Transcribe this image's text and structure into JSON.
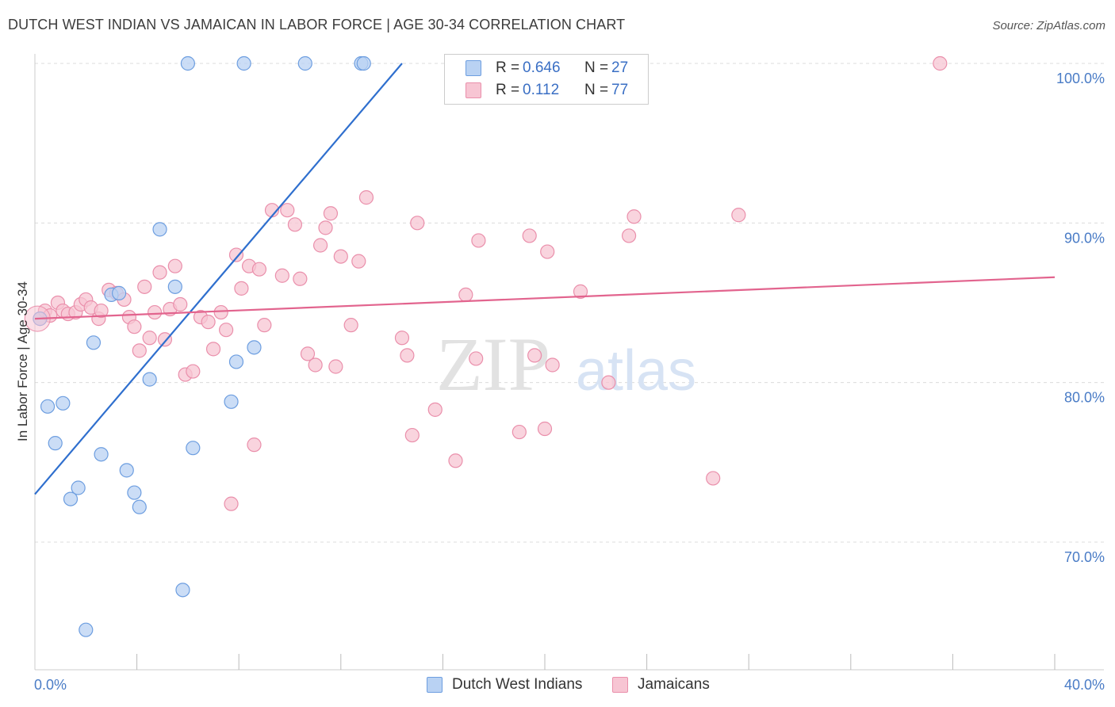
{
  "title": "DUTCH WEST INDIAN VS JAMAICAN IN LABOR FORCE | AGE 30-34 CORRELATION CHART",
  "source": "Source: ZipAtlas.com",
  "watermark": {
    "zip": "ZIP",
    "atlas": "atlas"
  },
  "colors": {
    "blue_fill": "#b9d2f3",
    "blue_stroke": "#6d9ee0",
    "blue_line": "#2f6fce",
    "pink_fill": "#f7c5d3",
    "pink_stroke": "#ea8fab",
    "pink_line": "#e2648e",
    "tick_text": "#4a7cc6",
    "grid": "#dcdcdc"
  },
  "legend_top": {
    "rows": [
      {
        "r_label": "R =",
        "r_value": "0.646",
        "n_label": "N =",
        "n_value": "27",
        "color": "#b9d2f3",
        "stroke": "#6d9ee0"
      },
      {
        "r_label": "R =",
        "r_value": "0.112",
        "n_label": "N =",
        "n_value": "77",
        "color": "#f7c5d3",
        "stroke": "#ea8fab"
      }
    ]
  },
  "legend_bottom": [
    {
      "label": "Dutch West Indians",
      "color": "#b9d2f3",
      "stroke": "#6d9ee0"
    },
    {
      "label": "Jamaicans",
      "color": "#f7c5d3",
      "stroke": "#ea8fab"
    }
  ],
  "chart_data": {
    "type": "scatter",
    "title": "DUTCH WEST INDIAN VS JAMAICAN IN LABOR FORCE | AGE 30-34 CORRELATION CHART",
    "xlabel": "",
    "ylabel": "In Labor Force | Age 30-34",
    "xlim": [
      0,
      40
    ],
    "ylim": [
      62,
      100
    ],
    "x_tick_labels": [
      {
        "value": 0,
        "label": "0.0%"
      },
      {
        "value": 40,
        "label": "40.0%"
      }
    ],
    "y_tick_labels": [
      {
        "value": 70,
        "label": "70.0%"
      },
      {
        "value": 80,
        "label": "80.0%"
      },
      {
        "value": 90,
        "label": "90.0%"
      },
      {
        "value": 100,
        "label": "100.0%"
      }
    ],
    "x_minor_ticks": [
      4,
      8,
      12,
      16,
      20,
      24,
      28,
      32,
      36
    ],
    "grid": true,
    "legend_position": "top-center",
    "series": [
      {
        "name": "Dutch West Indians",
        "r": 0.646,
        "n": 27,
        "trend": {
          "x": [
            0,
            14.4
          ],
          "y": [
            73.0,
            100.0
          ]
        },
        "points": [
          [
            0.2,
            84.0
          ],
          [
            0.5,
            78.5
          ],
          [
            0.8,
            76.2
          ],
          [
            1.1,
            78.7
          ],
          [
            1.4,
            72.7
          ],
          [
            1.7,
            73.4
          ],
          [
            2.0,
            64.5
          ],
          [
            2.3,
            82.5
          ],
          [
            2.6,
            75.5
          ],
          [
            3.0,
            85.5
          ],
          [
            3.3,
            85.6
          ],
          [
            3.6,
            74.5
          ],
          [
            3.9,
            73.1
          ],
          [
            4.1,
            72.2
          ],
          [
            4.5,
            80.2
          ],
          [
            4.9,
            89.6
          ],
          [
            5.5,
            86.0
          ],
          [
            5.8,
            67.0
          ],
          [
            6.0,
            100.0
          ],
          [
            6.2,
            75.9
          ],
          [
            7.7,
            78.8
          ],
          [
            7.9,
            81.3
          ],
          [
            8.2,
            100.0
          ],
          [
            8.6,
            82.2
          ],
          [
            10.6,
            100.0
          ],
          [
            12.8,
            100.0
          ],
          [
            12.9,
            100.0
          ]
        ]
      },
      {
        "name": "Jamaicans",
        "r": 0.112,
        "n": 77,
        "trend": {
          "x": [
            0,
            40
          ],
          "y": [
            84.0,
            86.6
          ]
        },
        "points": [
          [
            0.2,
            84.0
          ],
          [
            0.4,
            84.5
          ],
          [
            0.6,
            84.2
          ],
          [
            0.9,
            85.0
          ],
          [
            1.1,
            84.5
          ],
          [
            1.3,
            84.3
          ],
          [
            1.6,
            84.4
          ],
          [
            1.8,
            84.9
          ],
          [
            2.0,
            85.2
          ],
          [
            2.2,
            84.7
          ],
          [
            2.5,
            84.0
          ],
          [
            2.6,
            84.5
          ],
          [
            2.9,
            85.8
          ],
          [
            3.2,
            85.6
          ],
          [
            3.5,
            85.2
          ],
          [
            3.7,
            84.1
          ],
          [
            3.9,
            83.5
          ],
          [
            4.1,
            82.0
          ],
          [
            4.3,
            86.0
          ],
          [
            4.5,
            82.8
          ],
          [
            4.7,
            84.4
          ],
          [
            4.9,
            86.9
          ],
          [
            5.1,
            82.7
          ],
          [
            5.3,
            84.6
          ],
          [
            5.5,
            87.3
          ],
          [
            5.7,
            84.9
          ],
          [
            5.9,
            80.5
          ],
          [
            6.2,
            80.7
          ],
          [
            6.5,
            84.1
          ],
          [
            6.8,
            83.8
          ],
          [
            7.0,
            82.1
          ],
          [
            7.3,
            84.4
          ],
          [
            7.5,
            83.3
          ],
          [
            7.7,
            72.4
          ],
          [
            7.9,
            88.0
          ],
          [
            8.1,
            85.9
          ],
          [
            8.4,
            87.3
          ],
          [
            8.6,
            76.1
          ],
          [
            8.8,
            87.1
          ],
          [
            9.0,
            83.6
          ],
          [
            9.3,
            90.8
          ],
          [
            9.7,
            86.7
          ],
          [
            9.9,
            90.8
          ],
          [
            10.2,
            89.9
          ],
          [
            10.4,
            86.5
          ],
          [
            10.7,
            81.8
          ],
          [
            11.0,
            81.1
          ],
          [
            11.2,
            88.6
          ],
          [
            11.4,
            89.7
          ],
          [
            11.6,
            90.6
          ],
          [
            11.8,
            81.0
          ],
          [
            12.0,
            87.9
          ],
          [
            12.4,
            83.6
          ],
          [
            12.7,
            87.6
          ],
          [
            13.0,
            91.6
          ],
          [
            14.4,
            82.8
          ],
          [
            14.6,
            81.7
          ],
          [
            14.8,
            76.7
          ],
          [
            15.0,
            90.0
          ],
          [
            15.7,
            78.3
          ],
          [
            16.5,
            75.1
          ],
          [
            16.9,
            85.5
          ],
          [
            17.3,
            81.5
          ],
          [
            17.4,
            88.9
          ],
          [
            19.0,
            76.9
          ],
          [
            19.4,
            89.2
          ],
          [
            19.6,
            81.7
          ],
          [
            20.0,
            77.1
          ],
          [
            20.1,
            88.2
          ],
          [
            20.3,
            81.1
          ],
          [
            21.4,
            85.7
          ],
          [
            22.5,
            80.0
          ],
          [
            23.3,
            89.2
          ],
          [
            23.5,
            90.4
          ],
          [
            26.6,
            74.0
          ],
          [
            27.6,
            90.5
          ],
          [
            35.5,
            100.0
          ]
        ]
      }
    ]
  }
}
